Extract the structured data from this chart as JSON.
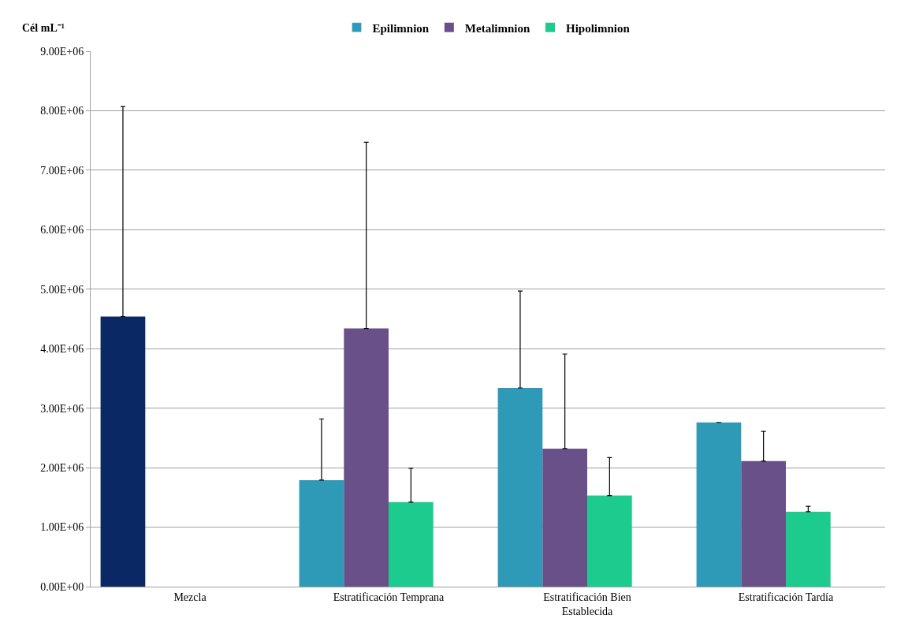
{
  "chart_data": {
    "type": "bar",
    "ylabel": "Cél mL⁻¹",
    "categories": [
      "Mezcla",
      "Estratificación Temprana",
      "Estratificación Bien Establecida",
      "Estratificación Tardía"
    ],
    "series": [
      {
        "name": "Epilimnion",
        "color": "#2e9ab8",
        "colors": [
          "#0a2864",
          "#2e9ab8",
          "#2e9ab8",
          "#2e9ab8"
        ],
        "values": [
          4540000,
          1790000,
          3340000,
          2760000
        ],
        "errors": [
          [
            4540000,
            8070000
          ],
          [
            1790000,
            2820000
          ],
          [
            3340000,
            4970000
          ],
          null
        ]
      },
      {
        "name": "Metalimnion",
        "color": "#6a5088",
        "values": [
          null,
          4340000,
          2320000,
          2110000
        ],
        "errors": [
          null,
          [
            4340000,
            7470000
          ],
          [
            2320000,
            3910000
          ],
          [
            2110000,
            2610000
          ]
        ]
      },
      {
        "name": "Hipolimnion",
        "color": "#1ecb8e",
        "values": [
          null,
          1420000,
          1530000,
          1260000
        ],
        "errors": [
          null,
          [
            1420000,
            1990000
          ],
          [
            1530000,
            2170000
          ],
          [
            1260000,
            1350000
          ]
        ]
      }
    ],
    "ylim": [
      0,
      9000000
    ],
    "yticks": [
      {
        "value": 0,
        "label": "0.00E+00"
      },
      {
        "value": 1000000,
        "label": "1.00E+06"
      },
      {
        "value": 2000000,
        "label": "2.00E+06"
      },
      {
        "value": 3000000,
        "label": "3.00E+06"
      },
      {
        "value": 4000000,
        "label": "4.00E+06"
      },
      {
        "value": 5000000,
        "label": "5.00E+06"
      },
      {
        "value": 6000000,
        "label": "6.00E+06"
      },
      {
        "value": 7000000,
        "label": "7.00E+06"
      },
      {
        "value": 8000000,
        "label": "8.00E+06"
      },
      {
        "value": 9000000,
        "label": "9.00E+06"
      }
    ],
    "grid": "y",
    "legend": "top"
  }
}
